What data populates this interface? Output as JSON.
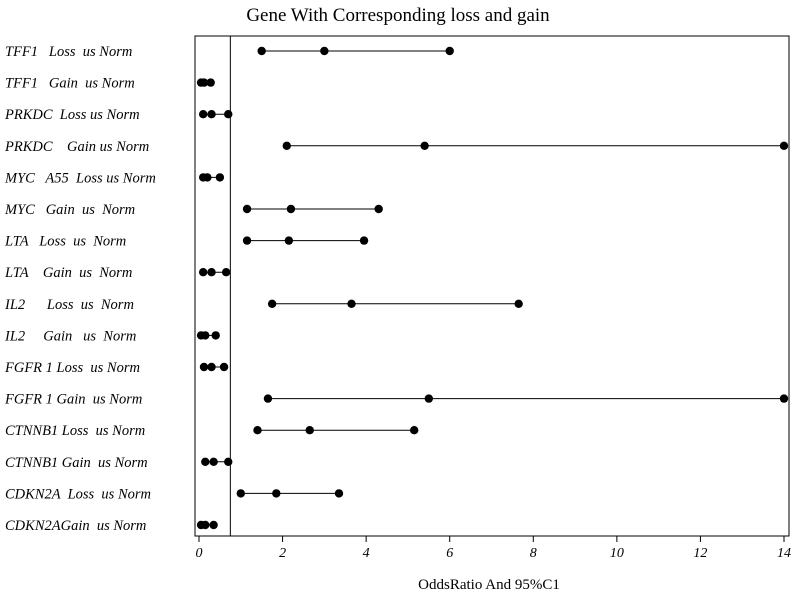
{
  "chart_data": {
    "type": "scatter",
    "title": "Gene With Corresponding loss and gain",
    "xlabel": "OddsRatio And 95%C1",
    "xlim": [
      0,
      14
    ],
    "xticks": [
      0,
      2,
      4,
      6,
      8,
      10,
      12,
      14
    ],
    "reference_line_x": 0.75,
    "grid": false,
    "rows": [
      {
        "label": "TFF1   Loss  us Norm",
        "low": 1.5,
        "or": 3.0,
        "high": 6.0
      },
      {
        "label": "TFF1   Gain  us Norm",
        "low": 0.05,
        "or": 0.12,
        "high": 0.28
      },
      {
        "label": "PRKDC  Loss us Norm",
        "low": 0.1,
        "or": 0.3,
        "high": 0.7
      },
      {
        "label": "PRKDC    Gain us Norm",
        "low": 2.1,
        "or": 5.4,
        "high": 14.0
      },
      {
        "label": "MYC   A55  Loss us Norm",
        "low": 0.1,
        "or": 0.2,
        "high": 0.5
      },
      {
        "label": "MYC   Gain  us  Norm",
        "low": 1.15,
        "or": 2.2,
        "high": 4.3
      },
      {
        "label": "LTA   Loss  us  Norm",
        "low": 1.15,
        "or": 2.15,
        "high": 3.95
      },
      {
        "label": "LTA    Gain  us  Norm",
        "low": 0.1,
        "or": 0.3,
        "high": 0.65
      },
      {
        "label": "IL2      Loss  us  Norm",
        "low": 1.75,
        "or": 3.65,
        "high": 7.65
      },
      {
        "label": "IL2     Gain   us  Norm",
        "low": 0.05,
        "or": 0.15,
        "high": 0.4
      },
      {
        "label": "FGFR 1 Loss  us Norm",
        "low": 0.12,
        "or": 0.3,
        "high": 0.6
      },
      {
        "label": "FGFR 1 Gain  us Norm",
        "low": 1.65,
        "or": 5.5,
        "high": 14.0
      },
      {
        "label": "CTNNB1 Loss  us Norm",
        "low": 1.4,
        "or": 2.65,
        "high": 5.15
      },
      {
        "label": "CTNNB1 Gain  us Norm",
        "low": 0.15,
        "or": 0.35,
        "high": 0.7
      },
      {
        "label": "CDKN2A  Loss  us Norm",
        "low": 1.0,
        "or": 1.85,
        "high": 3.35
      },
      {
        "label": "CDKN2AGain  us Norm",
        "low": 0.05,
        "or": 0.15,
        "high": 0.35
      }
    ]
  }
}
